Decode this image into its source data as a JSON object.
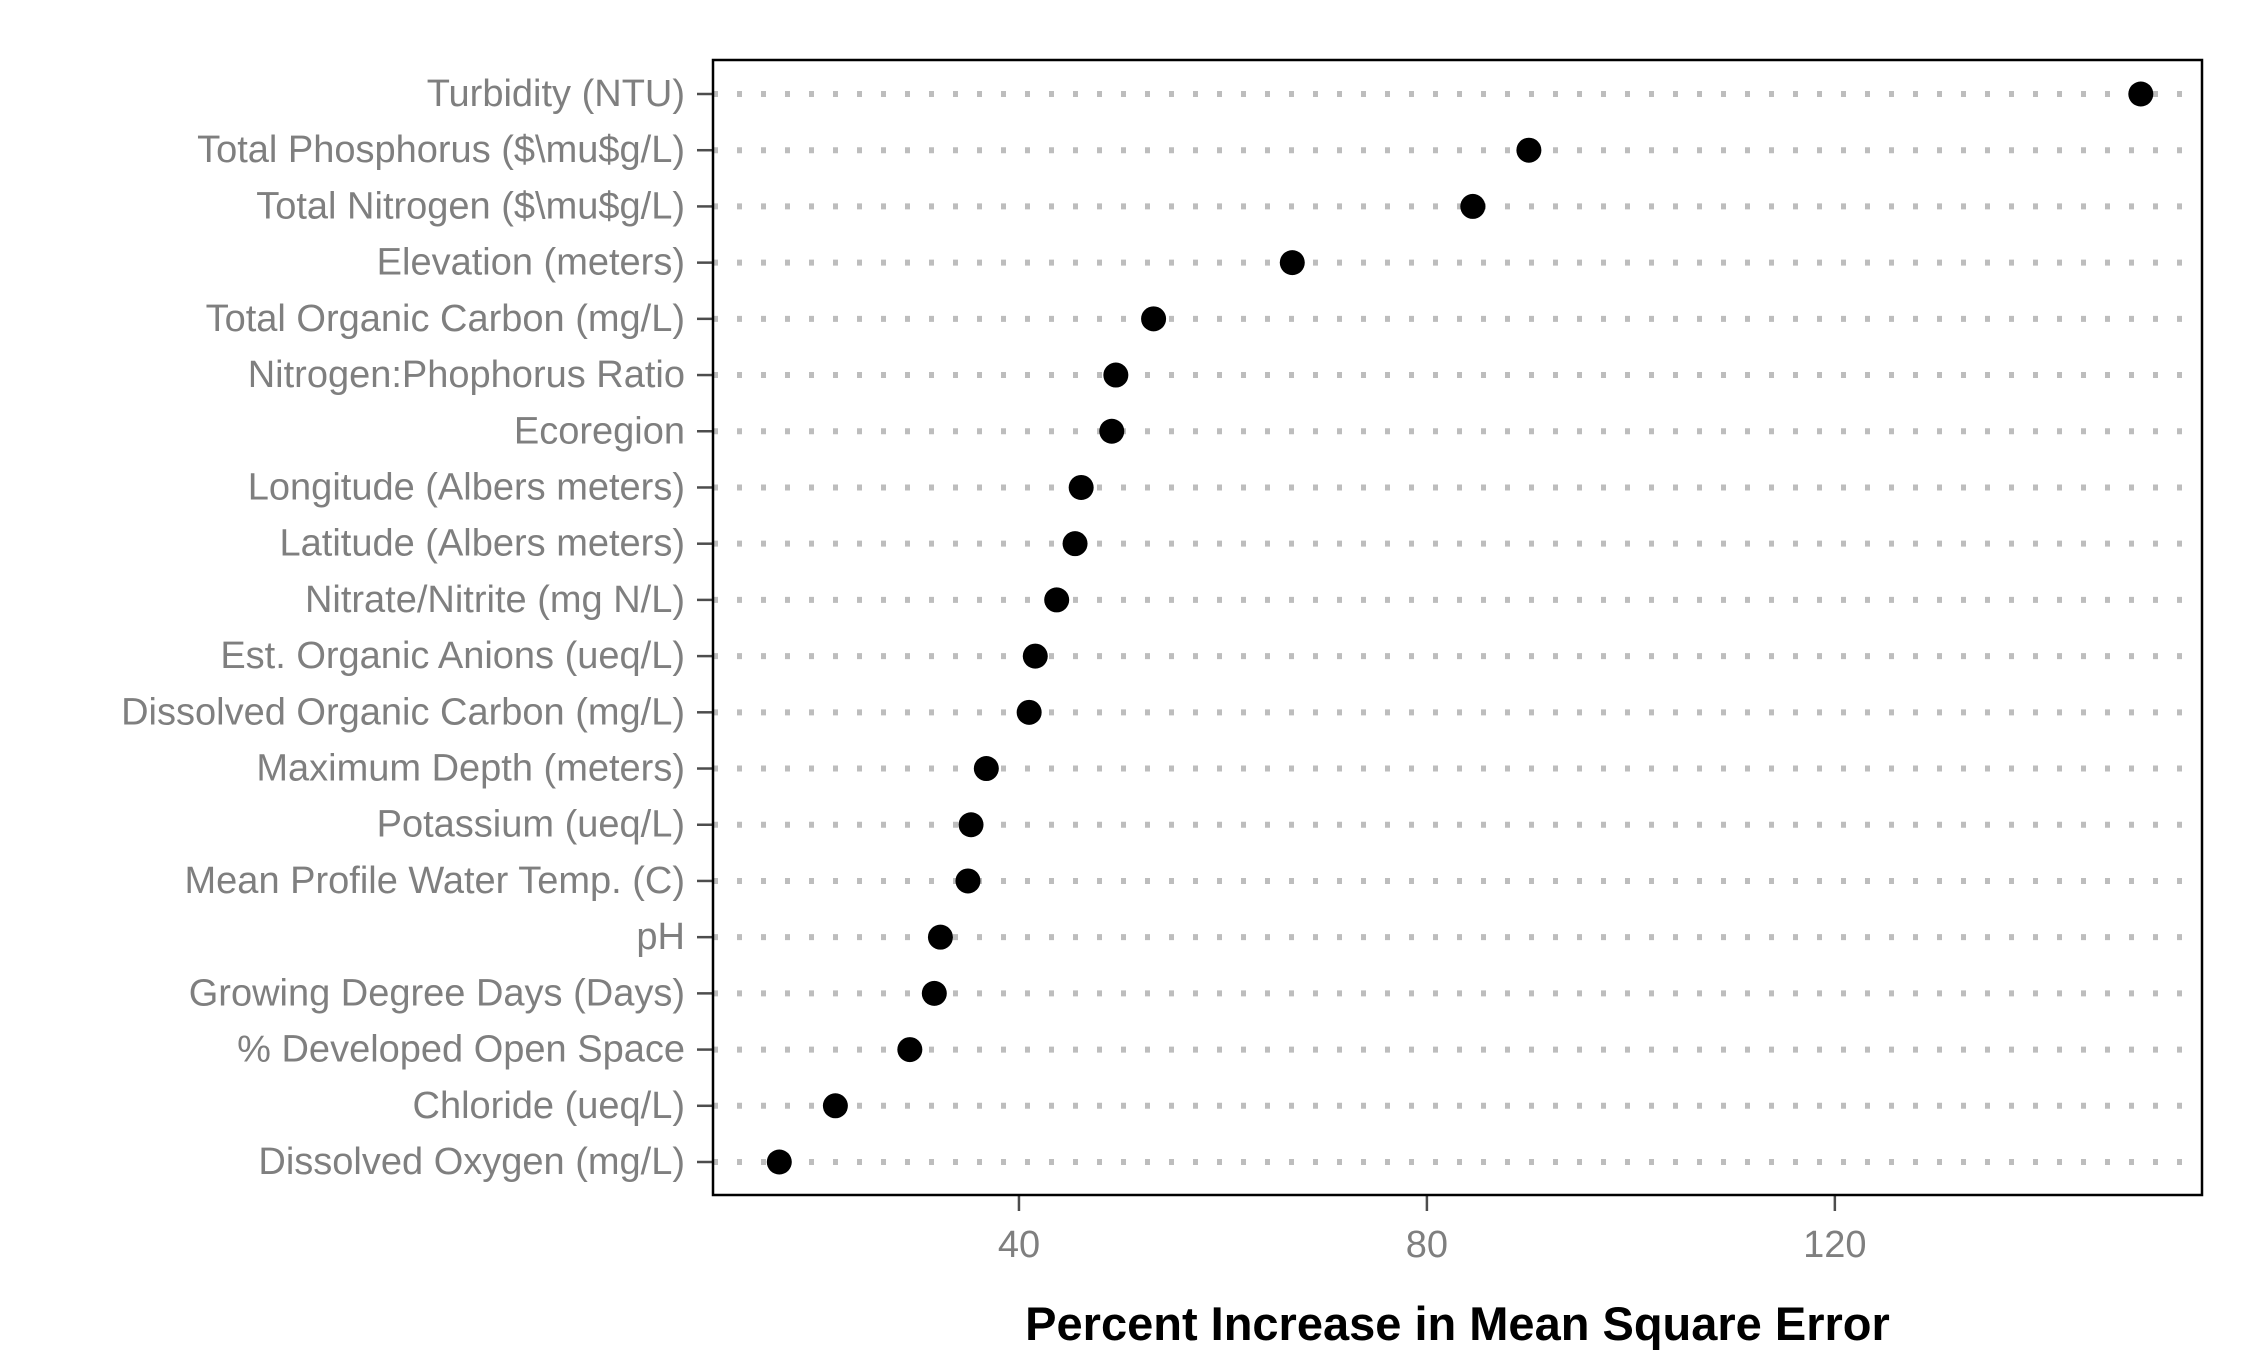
{
  "chart_data": {
    "type": "scatter",
    "subtype": "dot-plot",
    "title": "",
    "xlabel": "Percent Increase in Mean Square Error",
    "ylabel": "",
    "xlim": [
      10,
      156
    ],
    "x_ticks": [
      40,
      80,
      120
    ],
    "grid": "horizontal dotted guide lines",
    "legend": "none",
    "colors": {
      "point": "#000000",
      "grid": "#bdbdbd",
      "tick_label": "#7f7f7f",
      "axis": "#000000",
      "ticks": "#4d4d4d"
    },
    "categories": [
      "Turbidity (NTU)",
      "Total Phosphorus ($\\mu$g/L)",
      "Total Nitrogen ($\\mu$g/L)",
      "Elevation (meters)",
      "Total Organic Carbon (mg/L)",
      "Nitrogen:Phophorus Ratio",
      "Ecoregion",
      "Longitude (Albers meters)",
      "Latitude  (Albers meters)",
      "Nitrate/Nitrite (mg N/L)",
      "Est. Organic Anions (ueq/L)",
      "Dissolved Organic Carbon (mg/L)",
      "Maximum Depth (meters)",
      "Potassium (ueq/L)",
      "Mean Profile Water Temp. (C)",
      "pH",
      "Growing Degree Days (Days)",
      "% Developed Open Space",
      "Chloride (ueq/L)",
      "Dissolved Oxygen (mg/L)"
    ],
    "values": [
      150.0,
      90.0,
      84.5,
      66.8,
      53.2,
      49.5,
      49.1,
      46.1,
      45.5,
      43.7,
      41.6,
      41.0,
      36.8,
      35.3,
      35.0,
      32.3,
      31.7,
      29.3,
      22.0,
      16.5
    ]
  }
}
